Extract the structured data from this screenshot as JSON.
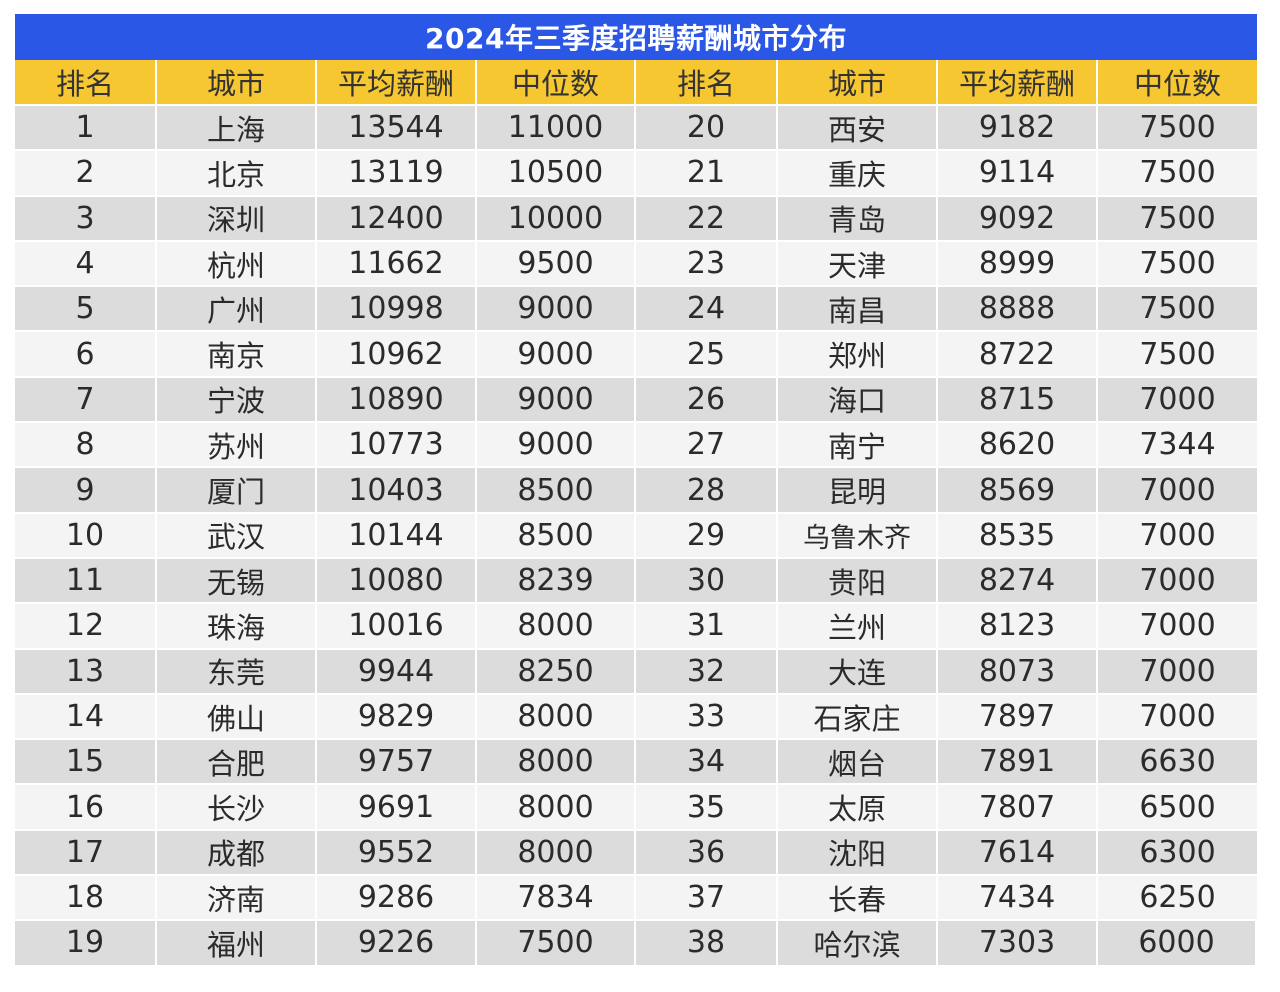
{
  "title": "2024年三季度招聘薪酬城市分布",
  "headers": [
    "排名",
    "城市",
    "平均薪酬",
    "中位数",
    "排名",
    "城市",
    "平均薪酬",
    "中位数"
  ],
  "rows": [
    {
      "l": [
        "1",
        "上海",
        "13544",
        "11000"
      ],
      "r": [
        "20",
        "西安",
        "9182",
        "7500"
      ]
    },
    {
      "l": [
        "2",
        "北京",
        "13119",
        "10500"
      ],
      "r": [
        "21",
        "重庆",
        "9114",
        "7500"
      ]
    },
    {
      "l": [
        "3",
        "深圳",
        "12400",
        "10000"
      ],
      "r": [
        "22",
        "青岛",
        "9092",
        "7500"
      ]
    },
    {
      "l": [
        "4",
        "杭州",
        "11662",
        "9500"
      ],
      "r": [
        "23",
        "天津",
        "8999",
        "7500"
      ]
    },
    {
      "l": [
        "5",
        "广州",
        "10998",
        "9000"
      ],
      "r": [
        "24",
        "南昌",
        "8888",
        "7500"
      ]
    },
    {
      "l": [
        "6",
        "南京",
        "10962",
        "9000"
      ],
      "r": [
        "25",
        "郑州",
        "8722",
        "7500"
      ]
    },
    {
      "l": [
        "7",
        "宁波",
        "10890",
        "9000"
      ],
      "r": [
        "26",
        "海口",
        "8715",
        "7000"
      ]
    },
    {
      "l": [
        "8",
        "苏州",
        "10773",
        "9000"
      ],
      "r": [
        "27",
        "南宁",
        "8620",
        "7344"
      ]
    },
    {
      "l": [
        "9",
        "厦门",
        "10403",
        "8500"
      ],
      "r": [
        "28",
        "昆明",
        "8569",
        "7000"
      ]
    },
    {
      "l": [
        "10",
        "武汉",
        "10144",
        "8500"
      ],
      "r": [
        "29",
        "乌鲁木齐",
        "8535",
        "7000"
      ]
    },
    {
      "l": [
        "11",
        "无锡",
        "10080",
        "8239"
      ],
      "r": [
        "30",
        "贵阳",
        "8274",
        "7000"
      ]
    },
    {
      "l": [
        "12",
        "珠海",
        "10016",
        "8000"
      ],
      "r": [
        "31",
        "兰州",
        "8123",
        "7000"
      ]
    },
    {
      "l": [
        "13",
        "东莞",
        "9944",
        "8250"
      ],
      "r": [
        "32",
        "大连",
        "8073",
        "7000"
      ]
    },
    {
      "l": [
        "14",
        "佛山",
        "9829",
        "8000"
      ],
      "r": [
        "33",
        "石家庄",
        "7897",
        "7000"
      ]
    },
    {
      "l": [
        "15",
        "合肥",
        "9757",
        "8000"
      ],
      "r": [
        "34",
        "烟台",
        "7891",
        "6630"
      ]
    },
    {
      "l": [
        "16",
        "长沙",
        "9691",
        "8000"
      ],
      "r": [
        "35",
        "太原",
        "7807",
        "6500"
      ]
    },
    {
      "l": [
        "17",
        "成都",
        "9552",
        "8000"
      ],
      "r": [
        "36",
        "沈阳",
        "7614",
        "6300"
      ]
    },
    {
      "l": [
        "18",
        "济南",
        "9286",
        "7834"
      ],
      "r": [
        "37",
        "长春",
        "7434",
        "6250"
      ]
    },
    {
      "l": [
        "19",
        "福州",
        "9226",
        "7500"
      ],
      "r": [
        "38",
        "哈尔滨",
        "7303",
        "6000"
      ]
    }
  ]
}
